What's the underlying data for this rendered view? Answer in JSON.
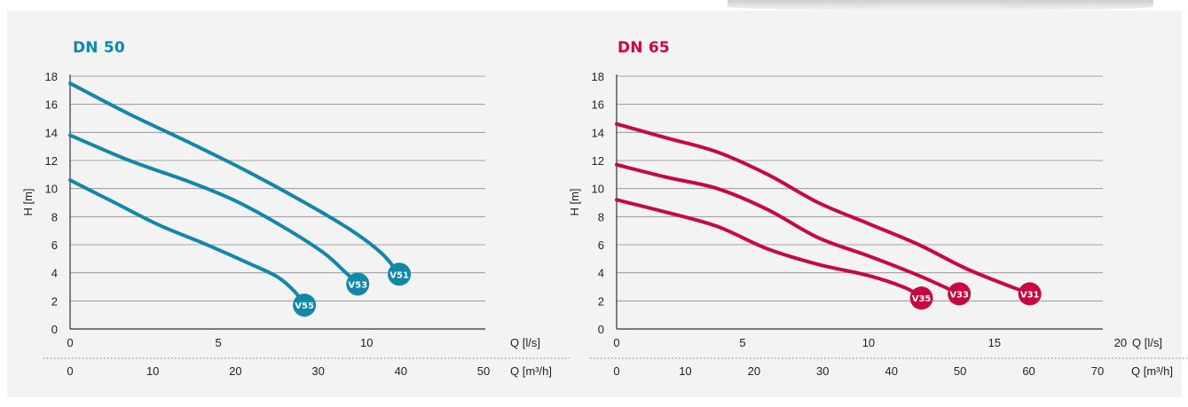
{
  "chart_data": [
    {
      "type": "line",
      "title": "DN 50",
      "color": "#1287a8",
      "ylabel": "H [m]",
      "xlabel": "Q [l/s]",
      "xlabel2": "Q [m³/h]",
      "xlim": [
        0,
        14
      ],
      "ylim": [
        0,
        18
      ],
      "x_ticks": [
        "0",
        "5",
        "10"
      ],
      "x_ticks_values": [
        0,
        5,
        10
      ],
      "x2_ticks": [
        "0",
        "10",
        "20",
        "30",
        "40",
        "50"
      ],
      "x2_ticks_values": [
        0,
        10,
        20,
        30,
        40,
        50
      ],
      "y_ticks": [
        "0",
        "2",
        "4",
        "6",
        "8",
        "10",
        "12",
        "14",
        "16",
        "18"
      ],
      "grid": "horizontal",
      "series": [
        {
          "name": "V51",
          "points": [
            [
              0,
              17.5
            ],
            [
              2,
              15.3
            ],
            [
              4,
              13.3
            ],
            [
              6,
              11.2
            ],
            [
              8,
              8.9
            ],
            [
              9.5,
              7.0
            ],
            [
              10.5,
              5.4
            ],
            [
              11.1,
              3.9
            ]
          ]
        },
        {
          "name": "V53",
          "points": [
            [
              0,
              13.8
            ],
            [
              2,
              12.0
            ],
            [
              4,
              10.5
            ],
            [
              5.5,
              9.2
            ],
            [
              7,
              7.5
            ],
            [
              8.5,
              5.5
            ],
            [
              9.3,
              4.0
            ],
            [
              9.7,
              3.2
            ]
          ]
        },
        {
          "name": "V55",
          "points": [
            [
              0,
              10.6
            ],
            [
              1.5,
              9.0
            ],
            [
              3,
              7.4
            ],
            [
              4.5,
              6.1
            ],
            [
              6,
              4.7
            ],
            [
              7,
              3.7
            ],
            [
              7.6,
              2.6
            ],
            [
              7.9,
              1.7
            ]
          ]
        }
      ]
    },
    {
      "type": "line",
      "title": "DN 65",
      "color": "#c8093f",
      "ylabel": "H [m]",
      "xlabel": "Q [l/s]",
      "xlabel2": "Q [m³/h]",
      "xlim": [
        0,
        19.3
      ],
      "ylim": [
        0,
        18
      ],
      "x_ticks": [
        "0",
        "5",
        "10",
        "15",
        "20"
      ],
      "x_ticks_values": [
        0,
        5,
        10,
        15,
        20
      ],
      "x2_ticks": [
        "0",
        "10",
        "20",
        "30",
        "40",
        "50",
        "60",
        "70"
      ],
      "x2_ticks_values": [
        0,
        10,
        20,
        30,
        40,
        50,
        60,
        70
      ],
      "y_ticks": [
        "0",
        "2",
        "4",
        "6",
        "8",
        "10",
        "12",
        "14",
        "16",
        "18"
      ],
      "grid": "horizontal",
      "series": [
        {
          "name": "V31",
          "points": [
            [
              0,
              14.6
            ],
            [
              2,
              13.6
            ],
            [
              4,
              12.6
            ],
            [
              6,
              11.0
            ],
            [
              8,
              9.0
            ],
            [
              10,
              7.5
            ],
            [
              12,
              6.0
            ],
            [
              14,
              4.2
            ],
            [
              16.4,
              2.5
            ]
          ]
        },
        {
          "name": "V33",
          "points": [
            [
              0,
              11.7
            ],
            [
              2,
              10.8
            ],
            [
              4,
              10.0
            ],
            [
              6,
              8.5
            ],
            [
              8,
              6.5
            ],
            [
              10,
              5.2
            ],
            [
              12,
              3.8
            ],
            [
              13.6,
              2.5
            ]
          ]
        },
        {
          "name": "V35",
          "points": [
            [
              0,
              9.2
            ],
            [
              2,
              8.3
            ],
            [
              4,
              7.3
            ],
            [
              6,
              5.7
            ],
            [
              8,
              4.6
            ],
            [
              10,
              3.8
            ],
            [
              11.5,
              2.9
            ],
            [
              12.1,
              2.2
            ]
          ]
        }
      ]
    }
  ]
}
